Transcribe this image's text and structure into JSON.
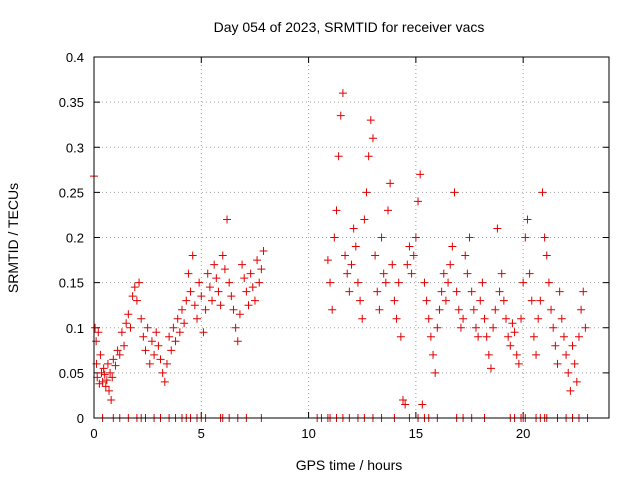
{
  "chart_data": {
    "type": "scatter",
    "title": "Day 054 of 2023, SRMTID for receiver vacs",
    "xlabel": "GPS time / hours",
    "ylabel": "SRMTID / TECUs",
    "xlim": [
      0,
      24.0
    ],
    "ylim": [
      0,
      0.4
    ],
    "x_ticks": [
      0,
      5,
      10,
      15,
      20
    ],
    "x_tick_labels": [
      "0",
      "5",
      "10",
      "15",
      "20"
    ],
    "y_ticks": [
      0,
      0.05,
      0.1,
      0.15,
      0.2,
      0.25,
      0.3,
      0.35,
      0.4
    ],
    "y_tick_labels": [
      "0",
      "0.05",
      "0.1",
      "0.15",
      "0.2",
      "0.25",
      "0.3",
      "0.35",
      "0.4"
    ],
    "grid": true,
    "marker": "+",
    "marker_color": "#e00000",
    "series": [
      {
        "name": "SRMTID",
        "points": [
          [
            0.0,
            0.268
          ],
          [
            0.05,
            0.1
          ],
          [
            0.1,
            0.085
          ],
          [
            0.12,
            0.06
          ],
          [
            0.15,
            0.045
          ],
          [
            0.2,
            0.095
          ],
          [
            0.25,
            0.038
          ],
          [
            0.3,
            0.07
          ],
          [
            0.35,
            0.05
          ],
          [
            0.4,
            0.04
          ],
          [
            0.45,
            0.055
          ],
          [
            0.5,
            0.048
          ],
          [
            0.55,
            0.035
          ],
          [
            0.6,
            0.042
          ],
          [
            0.65,
            0.06
          ],
          [
            0.7,
            0.03
          ],
          [
            0.75,
            0.05
          ],
          [
            0.8,
            0.02
          ],
          [
            0.85,
            0.045
          ],
          [
            0.9,
            0.065
          ],
          [
            1.0,
            0.058
          ],
          [
            1.1,
            0.075
          ],
          [
            1.2,
            0.07
          ],
          [
            1.3,
            0.095
          ],
          [
            1.4,
            0.08
          ],
          [
            1.5,
            0.105
          ],
          [
            1.6,
            0.115
          ],
          [
            1.7,
            0.1
          ],
          [
            1.8,
            0.135
          ],
          [
            1.9,
            0.145
          ],
          [
            2.0,
            0.13
          ],
          [
            2.1,
            0.15
          ],
          [
            2.2,
            0.11
          ],
          [
            2.3,
            0.09
          ],
          [
            2.4,
            0.075
          ],
          [
            2.5,
            0.1
          ],
          [
            2.6,
            0.06
          ],
          [
            2.7,
            0.085
          ],
          [
            2.8,
            0.07
          ],
          [
            2.9,
            0.095
          ],
          [
            3.0,
            0.08
          ],
          [
            3.1,
            0.065
          ],
          [
            3.2,
            0.05
          ],
          [
            3.3,
            0.04
          ],
          [
            3.4,
            0.06
          ],
          [
            3.5,
            0.09
          ],
          [
            3.6,
            0.075
          ],
          [
            3.7,
            0.1
          ],
          [
            3.8,
            0.085
          ],
          [
            3.9,
            0.11
          ],
          [
            4.0,
            0.095
          ],
          [
            4.1,
            0.12
          ],
          [
            4.2,
            0.105
          ],
          [
            4.3,
            0.13
          ],
          [
            4.4,
            0.16
          ],
          [
            4.5,
            0.14
          ],
          [
            4.6,
            0.18
          ],
          [
            4.7,
            0.125
          ],
          [
            4.8,
            0.11
          ],
          [
            4.9,
            0.15
          ],
          [
            5.0,
            0.135
          ],
          [
            5.1,
            0.095
          ],
          [
            5.2,
            0.12
          ],
          [
            5.3,
            0.16
          ],
          [
            5.4,
            0.145
          ],
          [
            5.5,
            0.13
          ],
          [
            5.6,
            0.17
          ],
          [
            5.7,
            0.155
          ],
          [
            5.8,
            0.14
          ],
          [
            5.9,
            0.125
          ],
          [
            6.0,
            0.18
          ],
          [
            6.1,
            0.165
          ],
          [
            6.2,
            0.22
          ],
          [
            6.3,
            0.15
          ],
          [
            6.4,
            0.135
          ],
          [
            6.5,
            0.12
          ],
          [
            6.6,
            0.1
          ],
          [
            6.7,
            0.085
          ],
          [
            6.8,
            0.115
          ],
          [
            6.9,
            0.17
          ],
          [
            7.0,
            0.155
          ],
          [
            7.1,
            0.14
          ],
          [
            7.2,
            0.125
          ],
          [
            7.3,
            0.16
          ],
          [
            7.4,
            0.145
          ],
          [
            7.5,
            0.13
          ],
          [
            7.6,
            0.175
          ],
          [
            7.7,
            0.15
          ],
          [
            7.8,
            0.165
          ],
          [
            7.9,
            0.185
          ],
          [
            10.9,
            0.175
          ],
          [
            11.0,
            0.15
          ],
          [
            11.1,
            0.12
          ],
          [
            11.2,
            0.2
          ],
          [
            11.3,
            0.23
          ],
          [
            11.4,
            0.29
          ],
          [
            11.5,
            0.335
          ],
          [
            11.6,
            0.36
          ],
          [
            11.7,
            0.18
          ],
          [
            11.8,
            0.16
          ],
          [
            11.9,
            0.14
          ],
          [
            12.0,
            0.17
          ],
          [
            12.1,
            0.21
          ],
          [
            12.2,
            0.19
          ],
          [
            12.3,
            0.15
          ],
          [
            12.4,
            0.13
          ],
          [
            12.5,
            0.11
          ],
          [
            12.6,
            0.22
          ],
          [
            12.7,
            0.25
          ],
          [
            12.8,
            0.29
          ],
          [
            12.9,
            0.33
          ],
          [
            13.0,
            0.31
          ],
          [
            13.1,
            0.18
          ],
          [
            13.2,
            0.14
          ],
          [
            13.3,
            0.12
          ],
          [
            13.4,
            0.2
          ],
          [
            13.5,
            0.16
          ],
          [
            13.6,
            0.15
          ],
          [
            13.7,
            0.23
          ],
          [
            13.8,
            0.26
          ],
          [
            13.9,
            0.17
          ],
          [
            14.0,
            0.13
          ],
          [
            14.1,
            0.11
          ],
          [
            14.2,
            0.15
          ],
          [
            14.3,
            0.09
          ],
          [
            14.4,
            0.02
          ],
          [
            14.5,
            0.015
          ],
          [
            14.6,
            0.17
          ],
          [
            14.7,
            0.19
          ],
          [
            14.8,
            0.16
          ],
          [
            14.9,
            0.18
          ],
          [
            15.0,
            0.2
          ],
          [
            15.1,
            0.24
          ],
          [
            15.2,
            0.27
          ],
          [
            15.3,
            0.015
          ],
          [
            15.4,
            0.15
          ],
          [
            15.5,
            0.13
          ],
          [
            15.6,
            0.11
          ],
          [
            15.7,
            0.09
          ],
          [
            15.8,
            0.07
          ],
          [
            15.9,
            0.05
          ],
          [
            16.0,
            0.1
          ],
          [
            16.1,
            0.12
          ],
          [
            16.2,
            0.14
          ],
          [
            16.3,
            0.16
          ],
          [
            16.4,
            0.13
          ],
          [
            16.5,
            0.15
          ],
          [
            16.6,
            0.17
          ],
          [
            16.7,
            0.19
          ],
          [
            16.8,
            0.25
          ],
          [
            16.9,
            0.14
          ],
          [
            17.0,
            0.12
          ],
          [
            17.1,
            0.1
          ],
          [
            17.2,
            0.11
          ],
          [
            17.3,
            0.18
          ],
          [
            17.4,
            0.16
          ],
          [
            17.5,
            0.2
          ],
          [
            17.6,
            0.14
          ],
          [
            17.7,
            0.12
          ],
          [
            17.8,
            0.1
          ],
          [
            17.9,
            0.09
          ],
          [
            18.0,
            0.13
          ],
          [
            18.1,
            0.15
          ],
          [
            18.2,
            0.11
          ],
          [
            18.3,
            0.09
          ],
          [
            18.4,
            0.07
          ],
          [
            18.5,
            0.055
          ],
          [
            18.6,
            0.1
          ],
          [
            18.7,
            0.12
          ],
          [
            18.8,
            0.21
          ],
          [
            18.9,
            0.14
          ],
          [
            19.0,
            0.16
          ],
          [
            19.1,
            0.13
          ],
          [
            19.2,
            0.11
          ],
          [
            19.3,
            0.09
          ],
          [
            19.4,
            0.08
          ],
          [
            19.5,
            0.105
          ],
          [
            19.6,
            0.095
          ],
          [
            19.7,
            0.07
          ],
          [
            19.8,
            0.06
          ],
          [
            19.9,
            0.11
          ],
          [
            20.0,
            0.15
          ],
          [
            20.1,
            0.2
          ],
          [
            20.2,
            0.22
          ],
          [
            20.3,
            0.16
          ],
          [
            20.4,
            0.13
          ],
          [
            20.5,
            0.09
          ],
          [
            20.6,
            0.07
          ],
          [
            20.7,
            0.11
          ],
          [
            20.8,
            0.13
          ],
          [
            20.9,
            0.25
          ],
          [
            21.0,
            0.2
          ],
          [
            21.1,
            0.18
          ],
          [
            21.2,
            0.15
          ],
          [
            21.3,
            0.12
          ],
          [
            21.4,
            0.1
          ],
          [
            21.5,
            0.08
          ],
          [
            21.6,
            0.06
          ],
          [
            21.7,
            0.14
          ],
          [
            21.8,
            0.11
          ],
          [
            21.9,
            0.09
          ],
          [
            22.0,
            0.07
          ],
          [
            22.1,
            0.05
          ],
          [
            22.2,
            0.03
          ],
          [
            22.3,
            0.08
          ],
          [
            22.4,
            0.06
          ],
          [
            22.5,
            0.04
          ],
          [
            22.6,
            0.09
          ],
          [
            22.7,
            0.12
          ],
          [
            22.8,
            0.14
          ],
          [
            22.9,
            0.1
          ]
        ],
        "zero_points_x": [
          0.4,
          0.9,
          1.2,
          1.6,
          2.0,
          2.2,
          2.4,
          2.8,
          3.1,
          3.5,
          3.8,
          4.1,
          4.3,
          4.5,
          4.8,
          5.0,
          5.2,
          5.9,
          6.0,
          6.3,
          6.7,
          7.1,
          7.8,
          10.4,
          10.6,
          10.9,
          11.0,
          11.3,
          11.6,
          11.9,
          12.3,
          12.6,
          13.0,
          13.4,
          14.0,
          14.7,
          15.1,
          15.4,
          15.6,
          16.0,
          16.9,
          17.2,
          17.6,
          18.2,
          19.4,
          19.6,
          19.9,
          20.0,
          20.1,
          20.6,
          20.8,
          21.0,
          21.1,
          21.6,
          22.0,
          22.3,
          22.6,
          23.0
        ]
      }
    ]
  }
}
